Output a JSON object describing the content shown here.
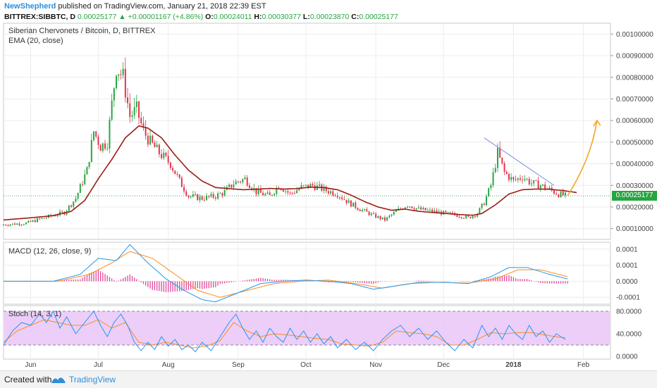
{
  "header": {
    "author": "NewShepherd",
    "published": "published on TradingView.com, January 21, 2018 22:39 EST",
    "symbol": "BITTREX:SIBBTC, D",
    "last": "0.00025177",
    "change": "▲ +0.00001167 (+4.86%)",
    "o_label": "O:",
    "o_value": "0.00024011",
    "h_label": "H:",
    "h_value": "0.00030377",
    "l_label": "L:",
    "l_value": "0.00023870",
    "c_label": "C:",
    "c_value": "0.00025177"
  },
  "main_pane": {
    "title": "Siberian Chervonets / Bitcoin, D, BITTREX",
    "indicator": "EMA (20, close)",
    "price_tag": "0.00025177"
  },
  "macd_pane": {
    "title": "MACD (12, 26, close, 9)"
  },
  "stoch_pane": {
    "title": "Stoch (14, 3, 1)"
  },
  "footer": {
    "created_with": "Created with",
    "brand": "TradingView"
  },
  "colors": {
    "up": "#26a541",
    "down": "#e0344d",
    "ema": "#9b1d12",
    "macd": "#2196f3",
    "signal": "#ff8c1a",
    "hist": "#e0489a",
    "stoch_band": "#e9c6f7",
    "arrow": "#f5a623",
    "trendline": "#7b8fd8"
  },
  "chart_data": [
    {
      "type": "candlestick",
      "name": "SIBBTC",
      "y_ticks": [
        "0.00100000",
        "0.00090000",
        "0.00080000",
        "0.00070000",
        "0.00060000",
        "0.00050000",
        "0.00040000",
        "0.00030000",
        "0.00020000",
        "0.00010000"
      ],
      "y_tick_values": [
        0.001,
        0.0009,
        0.0008,
        0.0007,
        0.0006,
        0.0005,
        0.0004,
        0.0003,
        0.0002,
        0.0001
      ],
      "ylim": [
        5e-05,
        0.00105
      ],
      "x_ticks": [
        "Jun",
        "Jul",
        "Aug",
        "Sep",
        "Oct",
        "Nov",
        "Dec",
        "2018",
        "Feb"
      ],
      "x_tick_days": [
        0,
        30,
        61,
        92,
        122,
        153,
        183,
        214,
        245
      ],
      "xlim": [
        -12,
        257
      ],
      "close_anchors": [
        [
          -12,
          0.000118
        ],
        [
          -2,
          0.000125
        ],
        [
          8,
          0.000155
        ],
        [
          15,
          0.000175
        ],
        [
          20,
          0.00024
        ],
        [
          25,
          0.00037
        ],
        [
          28,
          0.00055
        ],
        [
          31,
          0.00048
        ],
        [
          34,
          0.0005
        ],
        [
          38,
          0.00085
        ],
        [
          41,
          0.0008
        ],
        [
          44,
          0.00062
        ],
        [
          47,
          0.00065
        ],
        [
          50,
          0.00055
        ],
        [
          53,
          0.0005
        ],
        [
          57,
          0.00045
        ],
        [
          62,
          0.0004
        ],
        [
          66,
          0.00032
        ],
        [
          70,
          0.00025
        ],
        [
          76,
          0.00024
        ],
        [
          82,
          0.00025
        ],
        [
          86,
          0.00027
        ],
        [
          90,
          0.00031
        ],
        [
          95,
          0.00033
        ],
        [
          100,
          0.00027
        ],
        [
          106,
          0.00025
        ],
        [
          110,
          0.0003
        ],
        [
          115,
          0.00026
        ],
        [
          120,
          0.00029
        ],
        [
          125,
          0.0003
        ],
        [
          130,
          0.00028
        ],
        [
          136,
          0.00026
        ],
        [
          141,
          0.00022
        ],
        [
          146,
          0.00019
        ],
        [
          152,
          0.00016
        ],
        [
          157,
          0.00014
        ],
        [
          162,
          0.00018
        ],
        [
          167,
          0.00021
        ],
        [
          172,
          0.00019
        ],
        [
          178,
          0.00018
        ],
        [
          184,
          0.00017
        ],
        [
          190,
          0.00016
        ],
        [
          194,
          0.00015
        ],
        [
          198,
          0.00017
        ],
        [
          201,
          0.00022
        ],
        [
          204,
          0.0003
        ],
        [
          207,
          0.00045
        ],
        [
          210,
          0.00036
        ],
        [
          214,
          0.00032
        ],
        [
          218,
          0.00034
        ],
        [
          222,
          0.00031
        ],
        [
          226,
          0.0003
        ],
        [
          230,
          0.00028
        ],
        [
          234,
          0.00026
        ],
        [
          237,
          0.00025177
        ]
      ],
      "ema_anchors": [
        [
          -12,
          0.00014
        ],
        [
          0,
          0.00015
        ],
        [
          10,
          0.00016
        ],
        [
          18,
          0.00018
        ],
        [
          24,
          0.00023
        ],
        [
          30,
          0.00033
        ],
        [
          36,
          0.00042
        ],
        [
          42,
          0.00052
        ],
        [
          48,
          0.000575
        ],
        [
          52,
          0.000565
        ],
        [
          58,
          0.00052
        ],
        [
          64,
          0.00044
        ],
        [
          70,
          0.00037
        ],
        [
          76,
          0.00032
        ],
        [
          82,
          0.00029
        ],
        [
          88,
          0.000285
        ],
        [
          94,
          0.00028
        ],
        [
          100,
          0.000282
        ],
        [
          106,
          0.000286
        ],
        [
          112,
          0.000283
        ],
        [
          118,
          0.000285
        ],
        [
          124,
          0.000292
        ],
        [
          130,
          0.00029
        ],
        [
          136,
          0.00028
        ],
        [
          142,
          0.000255
        ],
        [
          148,
          0.000225
        ],
        [
          154,
          0.0002
        ],
        [
          160,
          0.000185
        ],
        [
          166,
          0.00019
        ],
        [
          172,
          0.00018
        ],
        [
          178,
          0.000175
        ],
        [
          184,
          0.00017
        ],
        [
          190,
          0.000165
        ],
        [
          196,
          0.000162
        ],
        [
          200,
          0.00017
        ],
        [
          206,
          0.00021
        ],
        [
          212,
          0.00026
        ],
        [
          218,
          0.00028
        ],
        [
          224,
          0.000283
        ],
        [
          230,
          0.000282
        ],
        [
          236,
          0.000276
        ],
        [
          242,
          0.000267
        ]
      ],
      "projection": {
        "from": [
          238,
          0.000252
        ],
        "to": [
          251,
          0.0006
        ]
      },
      "trendline": {
        "from": [
          201,
          0.00052
        ],
        "to": [
          232,
          0.0003
        ]
      },
      "last_price": 0.00025177,
      "grid": true
    },
    {
      "type": "line",
      "name": "MACD (12, 26, close, 9)",
      "y_ticks": [
        "0.0001",
        "0.0001",
        "0.0000",
        "-0.0001"
      ],
      "y_tick_values": [
        0.00014,
        7e-05,
        0.0,
        -7e-05
      ],
      "ylim": [
        -0.0001,
        0.00017
      ],
      "macd_anchors": [
        [
          -12,
          0.0
        ],
        [
          10,
          0.0
        ],
        [
          22,
          3e-05
        ],
        [
          30,
          0.0001
        ],
        [
          38,
          9e-05
        ],
        [
          44,
          0.00016
        ],
        [
          52,
          8e-05
        ],
        [
          60,
          1e-05
        ],
        [
          68,
          -4e-05
        ],
        [
          76,
          -8e-05
        ],
        [
          82,
          -9e-05
        ],
        [
          92,
          -5e-05
        ],
        [
          102,
          -1e-05
        ],
        [
          112,
          0.0
        ],
        [
          122,
          5e-06
        ],
        [
          132,
          0.0
        ],
        [
          142,
          -1e-05
        ],
        [
          152,
          -3.5e-05
        ],
        [
          162,
          -2e-05
        ],
        [
          172,
          -5e-06
        ],
        [
          184,
          -5e-06
        ],
        [
          194,
          -1e-05
        ],
        [
          204,
          2e-05
        ],
        [
          212,
          6e-05
        ],
        [
          220,
          6e-05
        ],
        [
          230,
          3e-05
        ],
        [
          238,
          1e-05
        ]
      ],
      "signal_anchors": [
        [
          -12,
          0.0
        ],
        [
          12,
          0.0
        ],
        [
          26,
          3e-05
        ],
        [
          36,
          8e-05
        ],
        [
          44,
          0.00013
        ],
        [
          54,
          0.0001
        ],
        [
          64,
          3e-05
        ],
        [
          74,
          -4e-05
        ],
        [
          84,
          -7e-05
        ],
        [
          96,
          -4e-05
        ],
        [
          108,
          -1e-05
        ],
        [
          120,
          0.0
        ],
        [
          132,
          5e-06
        ],
        [
          144,
          -1e-05
        ],
        [
          156,
          -3e-05
        ],
        [
          168,
          -1e-05
        ],
        [
          180,
          -5e-06
        ],
        [
          194,
          -8e-06
        ],
        [
          206,
          1e-05
        ],
        [
          216,
          5e-05
        ],
        [
          226,
          5e-05
        ],
        [
          238,
          2e-05
        ]
      ],
      "grid": true
    },
    {
      "type": "line",
      "name": "Stoch (14, 3, 1)",
      "y_ticks": [
        "80.0000",
        "40.0000",
        "0.0000"
      ],
      "y_tick_values": [
        80,
        40,
        0
      ],
      "ylim": [
        -5,
        90
      ],
      "band": [
        20,
        80
      ],
      "k_anchors": [
        [
          -12,
          20
        ],
        [
          -8,
          45
        ],
        [
          -4,
          60
        ],
        [
          0,
          55
        ],
        [
          4,
          75
        ],
        [
          7,
          60
        ],
        [
          10,
          80
        ],
        [
          13,
          50
        ],
        [
          16,
          70
        ],
        [
          20,
          40
        ],
        [
          24,
          60
        ],
        [
          28,
          80
        ],
        [
          31,
          55
        ],
        [
          34,
          35
        ],
        [
          37,
          60
        ],
        [
          40,
          75
        ],
        [
          43,
          55
        ],
        [
          46,
          25
        ],
        [
          49,
          10
        ],
        [
          52,
          25
        ],
        [
          55,
          12
        ],
        [
          58,
          35
        ],
        [
          61,
          18
        ],
        [
          64,
          30
        ],
        [
          67,
          12
        ],
        [
          70,
          20
        ],
        [
          73,
          8
        ],
        [
          76,
          25
        ],
        [
          80,
          10
        ],
        [
          84,
          35
        ],
        [
          88,
          60
        ],
        [
          91,
          75
        ],
        [
          94,
          50
        ],
        [
          97,
          30
        ],
        [
          100,
          45
        ],
        [
          103,
          25
        ],
        [
          106,
          50
        ],
        [
          109,
          35
        ],
        [
          112,
          25
        ],
        [
          115,
          50
        ],
        [
          118,
          30
        ],
        [
          121,
          45
        ],
        [
          124,
          25
        ],
        [
          127,
          40
        ],
        [
          130,
          22
        ],
        [
          133,
          35
        ],
        [
          136,
          15
        ],
        [
          140,
          30
        ],
        [
          144,
          12
        ],
        [
          148,
          25
        ],
        [
          152,
          10
        ],
        [
          156,
          30
        ],
        [
          160,
          45
        ],
        [
          164,
          55
        ],
        [
          168,
          35
        ],
        [
          172,
          50
        ],
        [
          176,
          30
        ],
        [
          180,
          45
        ],
        [
          184,
          25
        ],
        [
          188,
          10
        ],
        [
          192,
          30
        ],
        [
          196,
          15
        ],
        [
          200,
          55
        ],
        [
          203,
          35
        ],
        [
          206,
          50
        ],
        [
          209,
          30
        ],
        [
          212,
          55
        ],
        [
          215,
          40
        ],
        [
          218,
          30
        ],
        [
          221,
          55
        ],
        [
          224,
          35
        ],
        [
          227,
          45
        ],
        [
          230,
          25
        ],
        [
          233,
          40
        ],
        [
          237,
          30
        ]
      ],
      "d_anchors": [
        [
          -12,
          25
        ],
        [
          -6,
          45
        ],
        [
          0,
          55
        ],
        [
          6,
          65
        ],
        [
          12,
          60
        ],
        [
          18,
          55
        ],
        [
          24,
          55
        ],
        [
          30,
          65
        ],
        [
          36,
          50
        ],
        [
          42,
          60
        ],
        [
          48,
          25
        ],
        [
          54,
          20
        ],
        [
          60,
          25
        ],
        [
          66,
          20
        ],
        [
          72,
          15
        ],
        [
          78,
          18
        ],
        [
          84,
          28
        ],
        [
          90,
          60
        ],
        [
          96,
          45
        ],
        [
          102,
          35
        ],
        [
          108,
          40
        ],
        [
          114,
          38
        ],
        [
          120,
          35
        ],
        [
          126,
          32
        ],
        [
          132,
          30
        ],
        [
          138,
          22
        ],
        [
          144,
          20
        ],
        [
          150,
          18
        ],
        [
          156,
          25
        ],
        [
          162,
          45
        ],
        [
          168,
          42
        ],
        [
          174,
          40
        ],
        [
          180,
          35
        ],
        [
          186,
          20
        ],
        [
          192,
          20
        ],
        [
          198,
          30
        ],
        [
          204,
          42
        ],
        [
          210,
          40
        ],
        [
          216,
          42
        ],
        [
          222,
          42
        ],
        [
          228,
          38
        ],
        [
          234,
          34
        ],
        [
          237,
          33
        ]
      ],
      "grid": true
    }
  ]
}
